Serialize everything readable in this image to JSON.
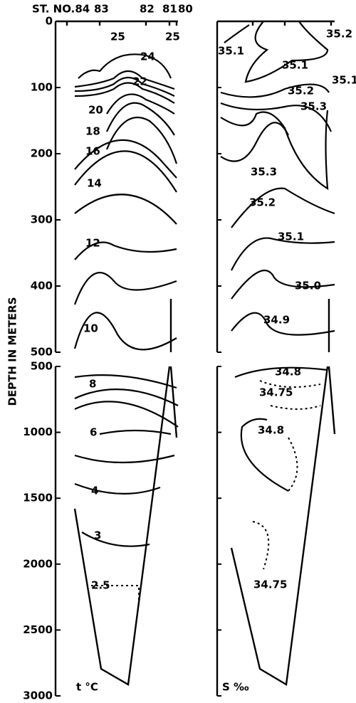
{
  "header": {
    "stations": [
      "ST. NO.84",
      "83",
      "82",
      "81",
      "80"
    ]
  },
  "axis": {
    "label": "DEPTH IN METERS",
    "upper_ticks": [
      0,
      100,
      200,
      300,
      400,
      500
    ],
    "lower_ticks": [
      500,
      1000,
      1500,
      2000,
      2500,
      3000
    ]
  },
  "temperature": {
    "label": "t °C",
    "contour_labels": [
      "25",
      "24",
      "22",
      "20",
      "18",
      "16",
      "14",
      "12",
      "10",
      "25",
      "8",
      "6",
      "4",
      "3",
      "2.5"
    ]
  },
  "salinity": {
    "label": "S ‰",
    "contour_labels": [
      "35.2",
      "35.1",
      "35.1",
      "35.1",
      "35.2",
      "35.3",
      "35.3",
      "35.2",
      "35.1",
      "35.0",
      "34.9",
      "34.8",
      "34.75",
      "34.8",
      "34.75"
    ]
  }
}
